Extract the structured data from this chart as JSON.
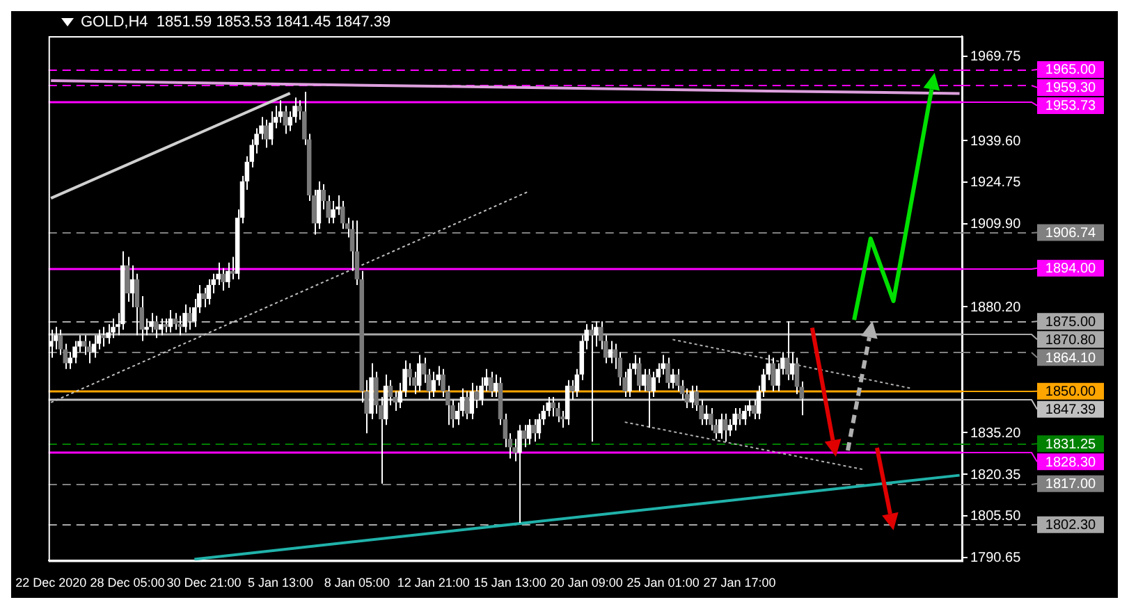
{
  "chart_data": {
    "type": "candlestick",
    "title": "GOLD,H4  1851.59 1853.53 1841.45 1847.39",
    "color": "#ffffff",
    "colors": [
      "#ffffff",
      "#ffffff",
      "#7a7a7a",
      "#7a7a7a",
      "#ffffff",
      "#ffffff",
      "#ffffff",
      "#7a7a7a",
      "#7a7a7a",
      "#ffffff",
      "#ffffff",
      "#7a7a7a",
      "#ffffff",
      "#ffffff",
      "#ffffff",
      "#ffffff",
      "#7a7a7a",
      "#ffffff",
      "#7a7a7a",
      "#7a7a7a",
      "#ffffff",
      "#ffffff",
      "#7a7a7a",
      "#ffffff",
      "#7a7a7a",
      "#ffffff",
      "#7a7a7a",
      "#7a7a7a",
      "#ffffff",
      "#7a7a7a",
      "#ffffff",
      "#ffffff",
      "#7a7a7a",
      "#ffffff",
      "#ffffff",
      "#ffffff",
      "#7a7a7a",
      "#ffffff",
      "#7a7a7a",
      "#ffffff",
      "#ffffff",
      "#ffffff",
      "#ffffff",
      "#ffffff",
      "#ffffff",
      "#7a7a7a",
      "#ffffff",
      "#ffffff",
      "#ffffff",
      "#7a7a7a",
      "#ffffff",
      "#ffffff",
      "#7a7a7a",
      "#7a7a7a",
      "#7a7a7a",
      "#7a7a7a",
      "#ffffff",
      "#7a7a7a",
      "#7a7a7a",
      "#ffffff",
      "#ffffff",
      "#7a7a7a",
      "#7a7a7a",
      "#7a7a7a",
      "#7a7a7a",
      "#7a7a7a",
      "#7a7a7a",
      "#ffffff",
      "#7a7a7a",
      "#7a7a7a",
      "#ffffff",
      "#7a7a7a",
      "#7a7a7a",
      "#ffffff",
      "#ffffff",
      "#7a7a7a",
      "#7a7a7a",
      "#ffffff",
      "#7a7a7a",
      "#7a7a7a",
      "#ffffff",
      "#ffffff",
      "#7a7a7a",
      "#7a7a7a",
      "#7a7a7a",
      "#ffffff",
      "#ffffff",
      "#7a7a7a",
      "#ffffff",
      "#7a7a7a",
      "#ffffff",
      "#ffffff",
      "#7a7a7a",
      "#ffffff",
      "#7a7a7a",
      "#7a7a7a",
      "#7a7a7a",
      "#7a7a7a",
      "#ffffff",
      "#7a7a7a",
      "#ffffff",
      "#7a7a7a",
      "#ffffff",
      "#ffffff",
      "#ffffff",
      "#7a7a7a",
      "#7a7a7a",
      "#7a7a7a",
      "#ffffff",
      "#7a7a7a",
      "#ffffff",
      "#ffffff",
      "#ffffff",
      "#7a7a7a",
      "#ffffff",
      "#7a7a7a",
      "#7a7a7a",
      "#ffffff",
      "#7a7a7a",
      "#7a7a7a",
      "#7a7a7a",
      "#ffffff",
      "#ffffff",
      "#7a7a7a",
      "#ffffff",
      "#7a7a7a",
      "#ffffff",
      "#ffffff",
      "#ffffff",
      "#7a7a7a",
      "#ffffff",
      "#7a7a7a",
      "#7a7a7a",
      "#7a7a7a",
      "#ffffff",
      "#7a7a7a",
      "#7a7a7a",
      "#ffffff",
      "#7a7a7a",
      "#7a7a7a",
      "#ffffff",
      "#7a7a7a",
      "#ffffff",
      "#ffffff",
      "#7a7a7a",
      "#ffffff",
      "#ffffff",
      "#7a7a7a",
      "#ffffff",
      "#ffffff",
      "#ffffff",
      "#7a7a7a",
      "#ffffff",
      "#ffffff",
      "#7a7a7a",
      "#ffffff",
      "#7a7a7a",
      "#7a7a7a",
      null,
      null,
      null,
      null,
      null,
      null,
      null,
      null,
      null,
      null,
      null,
      null,
      null,
      null,
      null,
      null,
      null,
      null,
      null,
      null,
      null,
      null,
      null,
      null,
      null,
      null,
      null,
      null,
      null,
      null,
      null,
      null,
      null
    ],
    "categories": [
      "22 Dec 2020",
      null,
      null,
      null,
      null,
      null,
      null,
      null,
      null,
      null,
      null,
      null,
      null,
      null,
      null,
      null,
      "28 Dec 05:00",
      null,
      null,
      null,
      null,
      null,
      null,
      null,
      null,
      null,
      null,
      null,
      null,
      null,
      null,
      null,
      "30 Dec 21:00",
      null,
      null,
      null,
      null,
      null,
      null,
      null,
      null,
      null,
      null,
      null,
      null,
      null,
      null,
      null,
      "5 Jan 13:00",
      null,
      null,
      null,
      null,
      null,
      null,
      null,
      null,
      null,
      null,
      null,
      null,
      null,
      null,
      null,
      "8 Jan 05:00",
      null,
      null,
      null,
      null,
      null,
      null,
      null,
      null,
      null,
      null,
      null,
      null,
      null,
      null,
      null,
      "12 Jan 21:00",
      null,
      null,
      null,
      null,
      null,
      null,
      null,
      null,
      null,
      null,
      null,
      null,
      null,
      null,
      null,
      "15 Jan 13:00",
      null,
      null,
      null,
      null,
      null,
      null,
      null,
      null,
      null,
      null,
      null,
      null,
      null,
      null,
      null,
      "20 Jan 09:00",
      null,
      null,
      null,
      null,
      null,
      null,
      null,
      null,
      null,
      null,
      null,
      null,
      null,
      null,
      null,
      "25 Jan 01:00",
      null,
      null,
      null,
      null,
      null,
      null,
      null,
      null,
      null,
      null,
      null,
      null,
      null,
      null,
      null,
      "27 Jan 17:00",
      null,
      null,
      null,
      null,
      null,
      null,
      null,
      null,
      null,
      null,
      null,
      null,
      null,
      null,
      null,
      null,
      null,
      null,
      null,
      null,
      null,
      null,
      null,
      null,
      null,
      null,
      null,
      null,
      null,
      null,
      null,
      null,
      null,
      null,
      null,
      null,
      null,
      null,
      null,
      null,
      null,
      null,
      null,
      null,
      null,
      null
    ],
    "ohlc": [
      [
        1866,
        1872,
        1862,
        1868
      ],
      [
        1868,
        1873,
        1865,
        1870
      ],
      [
        1870,
        1872,
        1863,
        1865
      ],
      [
        1865,
        1867,
        1858,
        1860
      ],
      [
        1860,
        1864,
        1858,
        1862
      ],
      [
        1862,
        1868,
        1860,
        1866
      ],
      [
        1866,
        1870,
        1864,
        1868
      ],
      [
        1868,
        1870,
        1863,
        1866
      ],
      [
        1866,
        1868,
        1860,
        1864
      ],
      [
        1864,
        1870,
        1862,
        1867
      ],
      [
        1867,
        1872,
        1865,
        1870
      ],
      [
        1870,
        1873,
        1866,
        1869
      ],
      [
        1869,
        1874,
        1867,
        1871
      ],
      [
        1871,
        1876,
        1869,
        1873
      ],
      [
        1873,
        1878,
        1870,
        1874
      ],
      [
        1874,
        1900,
        1872,
        1895
      ],
      [
        1895,
        1898,
        1882,
        1885
      ],
      [
        1885,
        1895,
        1880,
        1890
      ],
      [
        1890,
        1892,
        1870,
        1880
      ],
      [
        1880,
        1884,
        1868,
        1872
      ],
      [
        1872,
        1876,
        1870,
        1873
      ],
      [
        1873,
        1878,
        1871,
        1875
      ],
      [
        1875,
        1877,
        1869,
        1872
      ],
      [
        1872,
        1876,
        1870,
        1874
      ],
      [
        1874,
        1876,
        1871,
        1873
      ],
      [
        1873,
        1879,
        1871,
        1876
      ],
      [
        1876,
        1878,
        1872,
        1874
      ],
      [
        1874,
        1877,
        1870,
        1873
      ],
      [
        1873,
        1881,
        1871,
        1878
      ],
      [
        1878,
        1880,
        1872,
        1875
      ],
      [
        1875,
        1883,
        1873,
        1880
      ],
      [
        1880,
        1888,
        1878,
        1885
      ],
      [
        1885,
        1887,
        1880,
        1883
      ],
      [
        1883,
        1890,
        1881,
        1888
      ],
      [
        1888,
        1892,
        1885,
        1890
      ],
      [
        1890,
        1896,
        1888,
        1892
      ],
      [
        1892,
        1894,
        1886,
        1889
      ],
      [
        1889,
        1896,
        1887,
        1893
      ],
      [
        1893,
        1898,
        1890,
        1892
      ],
      [
        1892,
        1915,
        1890,
        1912
      ],
      [
        1912,
        1927,
        1910,
        1925
      ],
      [
        1925,
        1934,
        1922,
        1932
      ],
      [
        1932,
        1940,
        1930,
        1938
      ],
      [
        1938,
        1944,
        1935,
        1942
      ],
      [
        1942,
        1948,
        1940,
        1945
      ],
      [
        1945,
        1947,
        1937,
        1940
      ],
      [
        1940,
        1950,
        1938,
        1946
      ],
      [
        1946,
        1952,
        1944,
        1948
      ],
      [
        1948,
        1954,
        1946,
        1950
      ],
      [
        1950,
        1952,
        1942,
        1945
      ],
      [
        1945,
        1950,
        1943,
        1948
      ],
      [
        1948,
        1955,
        1946,
        1952
      ],
      [
        1952,
        1954,
        1947,
        1950
      ],
      [
        1950,
        1957,
        1938,
        1940
      ],
      [
        1940,
        1942,
        1918,
        1920
      ],
      [
        1920,
        1922,
        1906,
        1910
      ],
      [
        1910,
        1925,
        1908,
        1922
      ],
      [
        1922,
        1924,
        1915,
        1918
      ],
      [
        1918,
        1920,
        1910,
        1912
      ],
      [
        1912,
        1918,
        1910,
        1915
      ],
      [
        1915,
        1920,
        1913,
        1916
      ],
      [
        1916,
        1918,
        1908,
        1910
      ],
      [
        1910,
        1912,
        1905,
        1908
      ],
      [
        1908,
        1911,
        1893,
        1900
      ],
      [
        1900,
        1911,
        1888,
        1890
      ],
      [
        1890,
        1893,
        1846,
        1850
      ],
      [
        1850,
        1854,
        1835,
        1842
      ],
      [
        1842,
        1860,
        1840,
        1855
      ],
      [
        1855,
        1857,
        1842,
        1845
      ],
      [
        1845,
        1848,
        1817,
        1840
      ],
      [
        1840,
        1856,
        1838,
        1852
      ],
      [
        1852,
        1854,
        1845,
        1848
      ],
      [
        1848,
        1850,
        1843,
        1846
      ],
      [
        1846,
        1853,
        1844,
        1850
      ],
      [
        1850,
        1861,
        1848,
        1858
      ],
      [
        1858,
        1860,
        1852,
        1855
      ],
      [
        1855,
        1857,
        1849,
        1852
      ],
      [
        1852,
        1863,
        1850,
        1860
      ],
      [
        1860,
        1862,
        1853,
        1856
      ],
      [
        1856,
        1858,
        1847,
        1850
      ],
      [
        1850,
        1857,
        1848,
        1854
      ],
      [
        1854,
        1859,
        1852,
        1856
      ],
      [
        1856,
        1858,
        1848,
        1850
      ],
      [
        1850,
        1852,
        1838,
        1845
      ],
      [
        1845,
        1847,
        1837,
        1840
      ],
      [
        1840,
        1846,
        1838,
        1843
      ],
      [
        1843,
        1851,
        1841,
        1848
      ],
      [
        1848,
        1850,
        1840,
        1842
      ],
      [
        1842,
        1853,
        1840,
        1850
      ],
      [
        1850,
        1852,
        1844,
        1847
      ],
      [
        1847,
        1855,
        1845,
        1852
      ],
      [
        1852,
        1858,
        1850,
        1855
      ],
      [
        1855,
        1857,
        1848,
        1850
      ],
      [
        1850,
        1856,
        1848,
        1853
      ],
      [
        1853,
        1855,
        1838,
        1840
      ],
      [
        1840,
        1842,
        1830,
        1833
      ],
      [
        1833,
        1835,
        1826,
        1830
      ],
      [
        1830,
        1833,
        1825,
        1828
      ],
      [
        1828,
        1838,
        1803,
        1836
      ],
      [
        1836,
        1838,
        1830,
        1833
      ],
      [
        1833,
        1840,
        1831,
        1838
      ],
      [
        1838,
        1840,
        1832,
        1835
      ],
      [
        1835,
        1842,
        1833,
        1840
      ],
      [
        1840,
        1845,
        1838,
        1843
      ],
      [
        1843,
        1848,
        1841,
        1846
      ],
      [
        1846,
        1848,
        1841,
        1844
      ],
      [
        1844,
        1846,
        1839,
        1841
      ],
      [
        1841,
        1843,
        1837,
        1840
      ],
      [
        1840,
        1854,
        1838,
        1852
      ],
      [
        1852,
        1854,
        1847,
        1850
      ],
      [
        1850,
        1858,
        1848,
        1856
      ],
      [
        1856,
        1870,
        1854,
        1868
      ],
      [
        1868,
        1874,
        1865,
        1872
      ],
      [
        1872,
        1874,
        1832,
        1870
      ],
      [
        1870,
        1875,
        1866,
        1873
      ],
      [
        1873,
        1875,
        1865,
        1868
      ],
      [
        1868,
        1870,
        1860,
        1862
      ],
      [
        1862,
        1868,
        1860,
        1865
      ],
      [
        1865,
        1867,
        1858,
        1862
      ],
      [
        1862,
        1864,
        1852,
        1855
      ],
      [
        1855,
        1857,
        1848,
        1850
      ],
      [
        1850,
        1860,
        1848,
        1858
      ],
      [
        1858,
        1863,
        1856,
        1860
      ],
      [
        1860,
        1862,
        1850,
        1852
      ],
      [
        1852,
        1858,
        1850,
        1856
      ],
      [
        1856,
        1858,
        1837,
        1850
      ],
      [
        1850,
        1857,
        1848,
        1855
      ],
      [
        1855,
        1860,
        1853,
        1858
      ],
      [
        1858,
        1863,
        1856,
        1860
      ],
      [
        1860,
        1862,
        1851,
        1853
      ],
      [
        1853,
        1858,
        1851,
        1856
      ],
      [
        1856,
        1858,
        1850,
        1852
      ],
      [
        1852,
        1854,
        1847,
        1849
      ],
      [
        1849,
        1851,
        1844,
        1846
      ],
      [
        1846,
        1852,
        1844,
        1850
      ],
      [
        1850,
        1852,
        1843,
        1845
      ],
      [
        1845,
        1847,
        1838,
        1840
      ],
      [
        1840,
        1845,
        1838,
        1842
      ],
      [
        1842,
        1844,
        1836,
        1838
      ],
      [
        1838,
        1840,
        1833,
        1835
      ],
      [
        1835,
        1842,
        1833,
        1840
      ],
      [
        1840,
        1842,
        1832,
        1836
      ],
      [
        1836,
        1840,
        1834,
        1838
      ],
      [
        1838,
        1844,
        1836,
        1842
      ],
      [
        1842,
        1844,
        1838,
        1840
      ],
      [
        1840,
        1845,
        1838,
        1843
      ],
      [
        1843,
        1847,
        1841,
        1845
      ],
      [
        1845,
        1847,
        1840,
        1842
      ],
      [
        1842,
        1852,
        1840,
        1850
      ],
      [
        1850,
        1858,
        1848,
        1856
      ],
      [
        1856,
        1863,
        1854,
        1860
      ],
      [
        1860,
        1862,
        1850,
        1852
      ],
      [
        1852,
        1860,
        1850,
        1858
      ],
      [
        1858,
        1864,
        1856,
        1862
      ],
      [
        1862,
        1875,
        1854,
        1856
      ],
      [
        1856,
        1864,
        1854,
        1860
      ],
      [
        1860,
        1862,
        1849,
        1851.59
      ],
      [
        1851.59,
        1853.53,
        1841.45,
        1847.39
      ],
      null,
      null,
      null,
      null,
      null,
      null,
      null,
      null,
      null,
      null,
      null,
      null,
      null,
      null,
      null,
      null,
      null,
      null,
      null,
      null,
      null,
      null,
      null,
      null,
      null,
      null,
      null,
      null,
      null,
      null,
      null,
      null,
      null
    ],
    "series": [
      {
        "type": "line",
        "color": "#dda0dd",
        "line_style": "solid",
        "values": [
          1961,
          null,
          null,
          null,
          null,
          null,
          null,
          null,
          null,
          null,
          null,
          null,
          null,
          null,
          null,
          null,
          null,
          null,
          null,
          null,
          null,
          null,
          null,
          null,
          null,
          null,
          null,
          null,
          null,
          null,
          null,
          null,
          null,
          null,
          null,
          null,
          null,
          null,
          null,
          null,
          null,
          null,
          null,
          null,
          null,
          null,
          null,
          null,
          null,
          null,
          null,
          null,
          null,
          null,
          null,
          null,
          null,
          null,
          null,
          null,
          null,
          null,
          null,
          null,
          null,
          null,
          null,
          null,
          null,
          null,
          null,
          null,
          null,
          null,
          null,
          null,
          null,
          null,
          null,
          null,
          1959,
          null,
          null,
          null,
          null,
          null,
          null,
          null,
          null,
          null,
          null,
          null,
          null,
          null,
          null,
          null,
          null,
          null,
          null,
          null,
          null,
          null,
          null,
          null,
          null,
          null,
          null,
          null,
          null,
          null,
          null,
          null,
          null,
          null,
          null,
          null,
          null,
          null,
          null,
          null,
          null,
          null,
          null,
          null,
          null,
          null,
          null,
          null,
          null,
          null,
          null,
          null,
          null,
          null,
          null,
          null,
          null,
          null,
          null,
          null,
          null,
          null,
          null,
          null,
          null,
          null,
          null,
          null,
          null,
          null,
          1957.3,
          null,
          null,
          null,
          null,
          null,
          null,
          null,
          null,
          null,
          null,
          null,
          null,
          null,
          null,
          null,
          null,
          null,
          null,
          null,
          null,
          null,
          null,
          null,
          null,
          null,
          null,
          null,
          null,
          null,
          null,
          null,
          null,
          null,
          null,
          null,
          null,
          null,
          null,
          null,
          1956.4
        ]
      },
      {
        "type": "line",
        "color": "#d0d0d0",
        "line_style": "solid",
        "values": [
          1919,
          null,
          null,
          null,
          null,
          null,
          null,
          null,
          null,
          null,
          null,
          null,
          null,
          null,
          null,
          null,
          null,
          null,
          null,
          null,
          null,
          null,
          null,
          null,
          null,
          null,
          null,
          null,
          null,
          null,
          null,
          null,
          null,
          null,
          null,
          null,
          null,
          null,
          null,
          null,
          null,
          null,
          null,
          null,
          null,
          null,
          null,
          null,
          null,
          null,
          1956.5,
          null,
          null,
          null,
          null,
          null,
          null,
          null,
          null,
          null,
          null,
          null,
          null,
          null,
          null,
          null,
          null,
          null,
          null,
          null,
          null,
          null,
          null,
          null,
          null,
          null,
          null,
          null,
          null,
          null,
          null,
          null,
          null,
          null,
          null,
          null,
          null,
          null,
          null,
          null,
          null,
          null,
          null,
          null,
          null,
          null,
          null,
          null,
          null,
          null,
          null,
          null,
          null,
          null,
          null,
          null,
          null,
          null,
          null,
          null,
          null,
          null,
          null,
          null,
          null,
          null,
          null,
          null,
          null,
          null,
          null,
          null,
          null,
          null,
          null,
          null,
          null,
          null,
          null,
          null,
          null,
          null,
          null,
          null,
          null,
          null,
          null,
          null,
          null,
          null,
          null,
          null,
          null,
          null,
          null,
          null,
          null,
          null,
          null,
          null,
          null,
          null,
          null,
          null,
          null,
          null,
          null,
          null,
          null,
          null,
          null,
          null,
          null,
          null,
          null,
          null,
          null,
          null,
          null,
          null,
          null,
          null,
          null,
          null,
          null,
          null,
          null,
          null,
          null,
          null,
          null,
          null,
          null,
          null,
          null,
          null,
          null,
          null,
          null,
          null,
          null
        ]
      },
      {
        "type": "line",
        "color": "#c0c0c0",
        "line_style": "dotted",
        "values": [
          1846,
          null,
          null,
          null,
          null,
          null,
          null,
          null,
          null,
          null,
          null,
          null,
          null,
          null,
          null,
          null,
          null,
          null,
          null,
          null,
          null,
          null,
          null,
          null,
          null,
          null,
          null,
          null,
          null,
          null,
          null,
          null,
          null,
          null,
          null,
          null,
          null,
          null,
          null,
          null,
          null,
          null,
          null,
          null,
          null,
          null,
          null,
          null,
          null,
          null,
          null,
          null,
          null,
          null,
          null,
          null,
          null,
          null,
          null,
          null,
          null,
          null,
          null,
          null,
          null,
          null,
          null,
          null,
          null,
          null,
          null,
          null,
          null,
          null,
          null,
          null,
          null,
          null,
          null,
          null,
          null,
          null,
          null,
          null,
          null,
          null,
          null,
          null,
          null,
          null,
          null,
          null,
          null,
          null,
          null,
          null,
          null,
          null,
          null,
          null,
          1921.5,
          null,
          null,
          null,
          null,
          null,
          null,
          null,
          null,
          null,
          null,
          null,
          null,
          null,
          null,
          null,
          null,
          null,
          null,
          null,
          null,
          null,
          null,
          null,
          null,
          null,
          null,
          null,
          null,
          null,
          null,
          null,
          null,
          null,
          null,
          null,
          null,
          null,
          null,
          null,
          null,
          null,
          null,
          null,
          null,
          null,
          null,
          null,
          null,
          null,
          null,
          null,
          null,
          null,
          null,
          null,
          null,
          null,
          null,
          null,
          null,
          null,
          null,
          null,
          null,
          null,
          null,
          null,
          null,
          null,
          null,
          null,
          null,
          null,
          null,
          null,
          null,
          null,
          null,
          null,
          null,
          null,
          null,
          null,
          null,
          null,
          null,
          null,
          null,
          null,
          null
        ]
      },
      {
        "type": "line",
        "color": "#20b2aa",
        "line_style": "solid",
        "values": [
          null,
          null,
          null,
          null,
          null,
          null,
          null,
          null,
          null,
          null,
          null,
          null,
          null,
          null,
          null,
          null,
          null,
          null,
          null,
          null,
          null,
          null,
          null,
          null,
          null,
          null,
          null,
          null,
          null,
          null,
          1790,
          null,
          null,
          null,
          null,
          null,
          null,
          null,
          null,
          null,
          null,
          null,
          null,
          null,
          null,
          null,
          null,
          null,
          null,
          null,
          null,
          null,
          null,
          null,
          null,
          null,
          null,
          null,
          null,
          null,
          null,
          null,
          null,
          null,
          null,
          null,
          null,
          null,
          null,
          null,
          null,
          null,
          null,
          null,
          null,
          null,
          null,
          null,
          null,
          null,
          null,
          null,
          null,
          null,
          null,
          null,
          null,
          null,
          null,
          null,
          null,
          null,
          null,
          null,
          null,
          null,
          null,
          null,
          null,
          null,
          null,
          null,
          null,
          null,
          null,
          null,
          null,
          null,
          null,
          null,
          null,
          null,
          null,
          null,
          null,
          null,
          null,
          null,
          null,
          null,
          null,
          null,
          null,
          null,
          null,
          null,
          null,
          null,
          null,
          null,
          null,
          null,
          null,
          null,
          null,
          null,
          null,
          null,
          null,
          null,
          null,
          null,
          null,
          null,
          null,
          null,
          null,
          null,
          null,
          null,
          null,
          null,
          null,
          null,
          null,
          null,
          null,
          null,
          null,
          null,
          null,
          null,
          null,
          null,
          null,
          null,
          null,
          null,
          null,
          null,
          null,
          null,
          null,
          null,
          null,
          null,
          null,
          null,
          null,
          null,
          null,
          null,
          null,
          null,
          null,
          null,
          null,
          null,
          null,
          null,
          1820
        ]
      },
      {
        "type": "line",
        "color": "#b0b0b0",
        "line_style": "dotted",
        "values": [
          null,
          null,
          null,
          null,
          null,
          null,
          null,
          null,
          null,
          null,
          null,
          null,
          null,
          null,
          null,
          null,
          null,
          null,
          null,
          null,
          null,
          null,
          null,
          null,
          null,
          null,
          null,
          null,
          null,
          null,
          null,
          null,
          null,
          null,
          null,
          null,
          null,
          null,
          null,
          null,
          null,
          null,
          null,
          null,
          null,
          null,
          null,
          null,
          null,
          null,
          null,
          null,
          null,
          null,
          null,
          null,
          null,
          null,
          null,
          null,
          null,
          null,
          null,
          null,
          null,
          null,
          null,
          null,
          null,
          null,
          null,
          null,
          null,
          null,
          null,
          null,
          null,
          null,
          null,
          null,
          null,
          null,
          null,
          null,
          null,
          null,
          null,
          null,
          null,
          null,
          null,
          null,
          null,
          null,
          null,
          null,
          null,
          null,
          null,
          null,
          null,
          null,
          null,
          null,
          null,
          null,
          null,
          null,
          null,
          null,
          null,
          null,
          null,
          null,
          null,
          null,
          null,
          null,
          null,
          null,
          null,
          null,
          null,
          null,
          null,
          null,
          null,
          null,
          null,
          null,
          1868.5,
          null,
          null,
          null,
          null,
          null,
          null,
          null,
          null,
          null,
          null,
          null,
          null,
          null,
          null,
          null,
          null,
          null,
          null,
          null,
          null,
          null,
          null,
          null,
          null,
          null,
          null,
          null,
          null,
          null,
          null,
          null,
          null,
          null,
          null,
          null,
          null,
          null,
          null,
          null,
          null,
          null,
          null,
          null,
          null,
          null,
          null,
          null,
          null,
          null,
          1851,
          null,
          null,
          null,
          null,
          null,
          null,
          null,
          null,
          null,
          null
        ]
      },
      {
        "type": "line",
        "color": "#b0b0b0",
        "line_style": "dotted",
        "values": [
          null,
          null,
          null,
          null,
          null,
          null,
          null,
          null,
          null,
          null,
          null,
          null,
          null,
          null,
          null,
          null,
          null,
          null,
          null,
          null,
          null,
          null,
          null,
          null,
          null,
          null,
          null,
          null,
          null,
          null,
          null,
          null,
          null,
          null,
          null,
          null,
          null,
          null,
          null,
          null,
          null,
          null,
          null,
          null,
          null,
          null,
          null,
          null,
          null,
          null,
          null,
          null,
          null,
          null,
          null,
          null,
          null,
          null,
          null,
          null,
          null,
          null,
          null,
          null,
          null,
          null,
          null,
          null,
          null,
          null,
          null,
          null,
          null,
          null,
          null,
          null,
          null,
          null,
          null,
          null,
          null,
          null,
          null,
          null,
          null,
          null,
          null,
          null,
          null,
          null,
          null,
          null,
          null,
          null,
          null,
          null,
          null,
          null,
          null,
          null,
          null,
          null,
          null,
          null,
          null,
          null,
          null,
          null,
          null,
          null,
          null,
          null,
          null,
          null,
          null,
          null,
          null,
          null,
          null,
          null,
          1839,
          null,
          null,
          null,
          null,
          null,
          null,
          null,
          null,
          null,
          null,
          null,
          null,
          null,
          null,
          null,
          null,
          null,
          null,
          null,
          null,
          null,
          null,
          null,
          null,
          null,
          null,
          null,
          null,
          null,
          null,
          null,
          null,
          null,
          null,
          null,
          null,
          null,
          null,
          null,
          null,
          null,
          null,
          null,
          null,
          null,
          null,
          null,
          null,
          null,
          1822,
          null,
          null,
          null,
          null,
          null,
          null,
          null,
          null,
          null,
          null,
          null,
          null,
          null,
          null,
          null,
          null,
          null,
          null,
          null,
          null
        ]
      }
    ],
    "ylim": [
      1789.5,
      1976.9
    ],
    "yticks": [
      {
        "value": 1969.75,
        "label": "1969.75"
      },
      {
        "value": 1939.6,
        "label": "1939.60"
      },
      {
        "value": 1924.75,
        "label": "1924.75"
      },
      {
        "value": 1909.9,
        "label": "1909.90"
      },
      {
        "value": 1880.2,
        "label": "1880.20"
      },
      {
        "value": 1835.2,
        "label": "1835.20"
      },
      {
        "value": 1820.35,
        "label": "1820.35"
      },
      {
        "value": 1805.5,
        "label": "1805.50"
      },
      {
        "value": 1790.65,
        "label": "1790.65"
      }
    ],
    "ref_lines": [
      {
        "axis": "y",
        "value": 1965,
        "label": "1965.00",
        "color": "#ff00ff",
        "line_style": "dashed"
      },
      {
        "axis": "y",
        "value": 1959.3,
        "label": "1959.30",
        "color": "#ff00ff",
        "line_style": "dashed"
      },
      {
        "axis": "y",
        "value": 1953.73,
        "label": "1953.73",
        "color": "#ff00ff",
        "line_style": "solid"
      },
      {
        "axis": "y",
        "value": 1906.74,
        "label": "1906.74",
        "color": "#808080",
        "line_style": "dashed"
      },
      {
        "axis": "y",
        "value": 1894,
        "label": "1894.00",
        "color": "#ff00ff",
        "line_style": "solid"
      },
      {
        "axis": "y",
        "value": 1875,
        "label": "1875.00",
        "color": "#a9a9a9",
        "line_style": "dashed"
      },
      {
        "axis": "y",
        "value": 1870.8,
        "label": "1870.80",
        "color": "#a9a9a9",
        "line_style": "solid"
      },
      {
        "axis": "y",
        "value": 1864.1,
        "label": "1864.10",
        "color": "#808080",
        "line_style": "dashed"
      },
      {
        "axis": "y",
        "value": 1850,
        "label": "1850.00",
        "color": "#ffa500",
        "line_style": "solid"
      },
      {
        "axis": "y",
        "value": 1847.39,
        "label": "1847.39",
        "color": "#c0c0c0",
        "line_style": "solid"
      },
      {
        "axis": "y",
        "value": 1831.25,
        "label": "1831.25",
        "color": "#008000",
        "line_style": "dashed"
      },
      {
        "axis": "y",
        "value": 1828.3,
        "label": "1828.30",
        "color": "#ff00ff",
        "line_style": "solid"
      },
      {
        "axis": "y",
        "value": 1817,
        "label": "1817.00",
        "color": "#808080",
        "line_style": "dashed"
      },
      {
        "axis": "y",
        "value": 1802.3,
        "label": "1802.30",
        "color": "#a9a9a9",
        "line_style": "dashed"
      }
    ]
  }
}
